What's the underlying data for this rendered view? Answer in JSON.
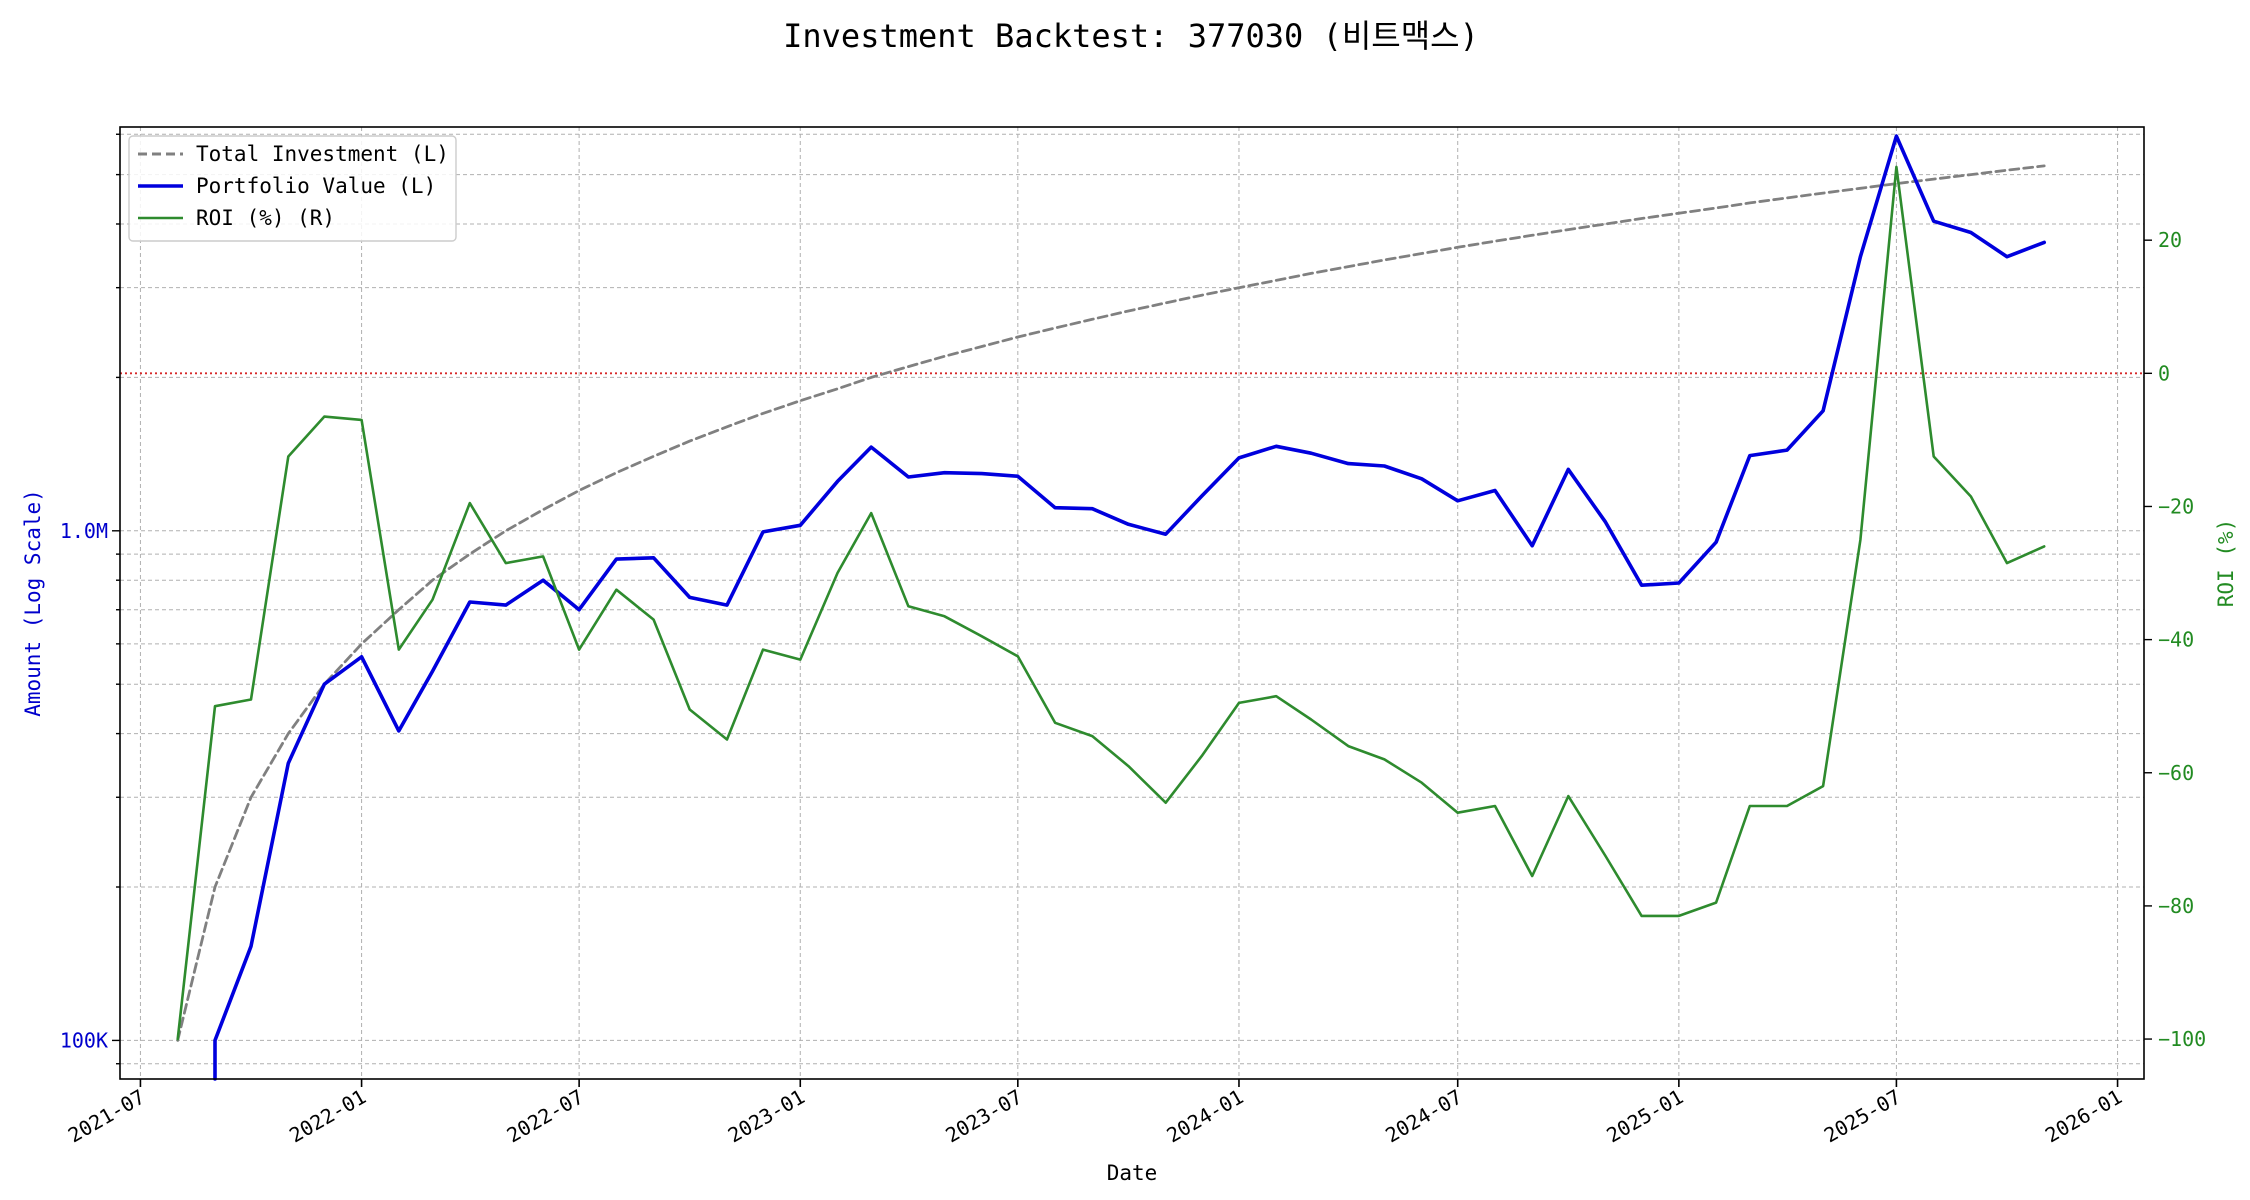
{
  "chart_data": {
    "type": "line",
    "title": "Investment Backtest: 377030 (비트맥스)",
    "xlabel": "Date",
    "ylabel_left": "Amount (Log Scale)",
    "ylabel_right": "ROI (%)",
    "left_scale": "log",
    "left_ylim": [
      84000,
      6200000
    ],
    "right_ylim": [
      -106,
      37
    ],
    "xlim": [
      "2021-06-14",
      "2026-01-23"
    ],
    "grid": true,
    "legend_position": "top-left",
    "left_axis_color": "#0000cc",
    "right_axis_color": "#228b22",
    "x_ticks": [
      {
        "date": "2021-07-01",
        "label": "2021-07"
      },
      {
        "date": "2022-01-01",
        "label": "2022-01"
      },
      {
        "date": "2022-07-01",
        "label": "2022-07"
      },
      {
        "date": "2023-01-01",
        "label": "2023-01"
      },
      {
        "date": "2023-07-01",
        "label": "2023-07"
      },
      {
        "date": "2024-01-01",
        "label": "2024-01"
      },
      {
        "date": "2024-07-01",
        "label": "2024-07"
      },
      {
        "date": "2025-01-01",
        "label": "2025-01"
      },
      {
        "date": "2025-07-01",
        "label": "2025-07"
      },
      {
        "date": "2026-01-01",
        "label": "2026-01"
      }
    ],
    "left_ticks": [
      {
        "value": 100000,
        "label": "100K"
      },
      {
        "value": 1000000,
        "label": "1.0M"
      }
    ],
    "right_ticks": [
      {
        "value": 20,
        "label": "20"
      },
      {
        "value": 0,
        "label": "0"
      },
      {
        "value": -20,
        "label": "−20"
      },
      {
        "value": -40,
        "label": "−40"
      },
      {
        "value": -60,
        "label": "−60"
      },
      {
        "value": -80,
        "label": "−80"
      },
      {
        "value": -100,
        "label": "−100"
      }
    ],
    "reference_line": {
      "axis": "right",
      "value": 0,
      "color": "#d62728",
      "style": "dotted"
    },
    "dates": [
      "2021-08-01",
      "2021-09-01",
      "2021-10-01",
      "2021-11-01",
      "2021-12-01",
      "2022-01-01",
      "2022-02-01",
      "2022-03-01",
      "2022-04-01",
      "2022-05-01",
      "2022-06-01",
      "2022-07-01",
      "2022-08-01",
      "2022-09-01",
      "2022-10-01",
      "2022-11-01",
      "2022-12-01",
      "2023-01-01",
      "2023-02-01",
      "2023-03-01",
      "2023-04-01",
      "2023-05-01",
      "2023-06-01",
      "2023-07-01",
      "2023-08-01",
      "2023-09-01",
      "2023-10-01",
      "2023-11-01",
      "2023-12-01",
      "2024-01-01",
      "2024-02-01",
      "2024-03-01",
      "2024-04-01",
      "2024-05-01",
      "2024-06-01",
      "2024-07-01",
      "2024-08-01",
      "2024-09-01",
      "2024-10-01",
      "2024-11-01",
      "2024-12-01",
      "2025-01-01",
      "2025-02-01",
      "2025-03-01",
      "2025-04-01",
      "2025-05-01",
      "2025-06-01",
      "2025-07-01",
      "2025-08-01",
      "2025-09-01",
      "2025-10-01",
      "2025-11-01"
    ],
    "series": [
      {
        "name": "Total Investment (L)",
        "axis": "left",
        "color": "#808080",
        "style": "dashed",
        "values": [
          100000,
          200000,
          300000,
          400000,
          500000,
          600000,
          700000,
          800000,
          900000,
          1000000,
          1100000,
          1200000,
          1300000,
          1400000,
          1500000,
          1600000,
          1700000,
          1800000,
          1900000,
          2000000,
          2100000,
          2200000,
          2300000,
          2400000,
          2500000,
          2600000,
          2700000,
          2800000,
          2900000,
          3000000,
          3100000,
          3200000,
          3300000,
          3400000,
          3500000,
          3600000,
          3700000,
          3800000,
          3900000,
          4000000,
          4100000,
          4200000,
          4300000,
          4400000,
          4500000,
          4600000,
          4700000,
          4800000,
          4900000,
          5000000,
          5100000,
          5200000
        ]
      },
      {
        "name": "Portfolio Value (L)",
        "axis": "left",
        "color": "#0000dd",
        "style": "solid",
        "values": [
          null,
          100000,
          153000,
          350000,
          500000,
          566000,
          405000,
          530000,
          725000,
          715000,
          800000,
          700000,
          880000,
          885000,
          740000,
          715000,
          995000,
          1025000,
          1250000,
          1460000,
          1275000,
          1300000,
          1295000,
          1280000,
          1110000,
          1105000,
          1030000,
          985000,
          1170000,
          1390000,
          1465000,
          1420000,
          1355000,
          1340000,
          1265000,
          1145000,
          1200000,
          935000,
          1320000,
          1040000,
          782000,
          790000,
          950000,
          1405000,
          1440000,
          1720000,
          3450000,
          5950000,
          4050000,
          3850000,
          3450000,
          3680000
        ]
      },
      {
        "name": "ROI (%) (R)",
        "axis": "right",
        "color": "#2e8b2e",
        "style": "solid",
        "values": [
          -100,
          -50,
          -49,
          -12.5,
          -6.5,
          -7,
          -41.5,
          -34,
          -19.5,
          -28.5,
          -27.5,
          -41.5,
          -32.5,
          -37,
          -50.5,
          -55,
          -41.5,
          -43,
          -30,
          -21,
          -35,
          -36.5,
          -39.5,
          -42.5,
          -52.5,
          -54.5,
          -59,
          -64.5,
          -57.5,
          -49.5,
          -48.5,
          -52,
          -56,
          -58,
          -61.5,
          -66,
          -65,
          -75.5,
          -63.5,
          -72.5,
          -81.5,
          -81.5,
          -79.5,
          -65,
          -65,
          -62,
          -25,
          31,
          -12.5,
          -18.5,
          -28.5,
          -26
        ]
      }
    ]
  }
}
